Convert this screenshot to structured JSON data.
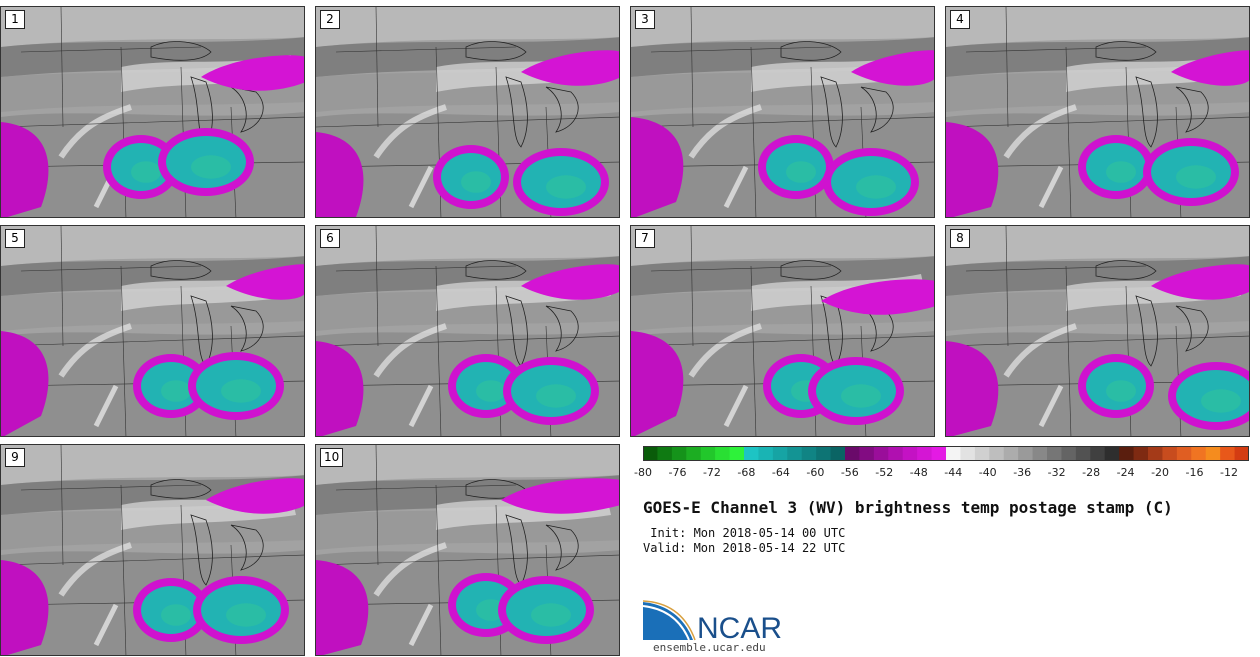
{
  "panels": [
    {
      "label": "1"
    },
    {
      "label": "2"
    },
    {
      "label": "3"
    },
    {
      "label": "4"
    },
    {
      "label": "5"
    },
    {
      "label": "6"
    },
    {
      "label": "7"
    },
    {
      "label": "8"
    },
    {
      "label": "9"
    },
    {
      "label": "10"
    }
  ],
  "colorbar": {
    "ticks": [
      "-80",
      "-76",
      "-72",
      "-68",
      "-64",
      "-60",
      "-56",
      "-52",
      "-48",
      "-44",
      "-40",
      "-36",
      "-32",
      "-28",
      "-24",
      "-20",
      "-16",
      "-12"
    ],
    "colors": [
      "#0a5c0a",
      "#0f7a12",
      "#15931a",
      "#1cad22",
      "#22c72b",
      "#29df33",
      "#2ef23a",
      "#1dc4c4",
      "#19b4b4",
      "#16a4a4",
      "#139494",
      "#108484",
      "#0d7474",
      "#0a6464",
      "#6a0a6a",
      "#820c82",
      "#9a0e9a",
      "#b010b0",
      "#c412c4",
      "#d416d4",
      "#e41ae4",
      "#f4f4f4",
      "#e2e2e2",
      "#d0d0d0",
      "#bebebe",
      "#acacac",
      "#9a9a9a",
      "#888888",
      "#767676",
      "#646464",
      "#525252",
      "#404040",
      "#2e2e2e",
      "#5a1e0e",
      "#7e2a12",
      "#a43a18",
      "#c84c1e",
      "#e05e22",
      "#f07422",
      "#f58c1e",
      "#e8581a",
      "#d43c12"
    ]
  },
  "title": "GOES-E Channel 3 (WV) brightness temp postage stamp (C)",
  "init": " Init: Mon 2018-05-14 00 UTC",
  "valid": "Valid: Mon 2018-05-14 22 UTC",
  "logo": {
    "text": "NCAR",
    "url": "ensemble.ucar.edu"
  }
}
